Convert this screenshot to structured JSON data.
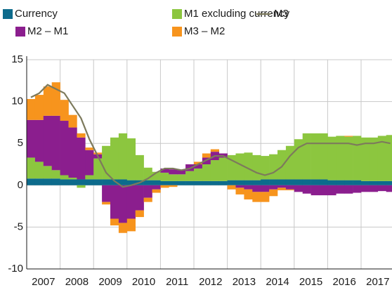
{
  "chart_data": {
    "type": "stacked_bar_line",
    "x": [
      2007.125,
      2007.375,
      2007.625,
      2007.875,
      2008.125,
      2008.375,
      2008.625,
      2008.875,
      2009.125,
      2009.375,
      2009.625,
      2009.875,
      2010.125,
      2010.375,
      2010.625,
      2010.875,
      2011.125,
      2011.375,
      2011.625,
      2011.875,
      2012.125,
      2012.375,
      2012.625,
      2012.875,
      2013.125,
      2013.375,
      2013.625,
      2013.875,
      2014.125,
      2014.375,
      2014.625,
      2014.875,
      2015.125,
      2015.375,
      2015.625,
      2015.875,
      2016.125,
      2016.375,
      2016.625,
      2016.875,
      2017.125,
      2017.375,
      2017.625,
      2017.875
    ],
    "xlim": [
      2007,
      2018
    ],
    "xticks": [
      {
        "value": 2007.5,
        "label": "2007"
      },
      {
        "value": 2008.5,
        "label": "2008"
      },
      {
        "value": 2009.5,
        "label": "2009"
      },
      {
        "value": 2010.5,
        "label": "2010"
      },
      {
        "value": 2011.5,
        "label": "2011"
      },
      {
        "value": 2012.5,
        "label": "2012"
      },
      {
        "value": 2013.5,
        "label": "2013"
      },
      {
        "value": 2014.5,
        "label": "2014"
      },
      {
        "value": 2015.5,
        "label": "2015"
      },
      {
        "value": 2016.5,
        "label": "2016"
      },
      {
        "value": 2017.5,
        "label": "2017"
      }
    ],
    "ylim": [
      -10,
      15
    ],
    "yticks": [
      -10,
      -5,
      0,
      5,
      10,
      15
    ],
    "grid": true,
    "series": [
      {
        "name": "Currency",
        "color": "#0d6b8c",
        "kind": "bar",
        "values": [
          0.8,
          0.8,
          0.8,
          0.8,
          0.7,
          0.7,
          0.7,
          0.7,
          0.7,
          0.7,
          0.7,
          0.7,
          0.6,
          0.6,
          0.6,
          0.6,
          0.5,
          0.5,
          0.5,
          0.5,
          0.5,
          0.5,
          0.5,
          0.5,
          0.6,
          0.6,
          0.6,
          0.6,
          0.7,
          0.7,
          0.7,
          0.7,
          0.7,
          0.7,
          0.7,
          0.7,
          0.6,
          0.6,
          0.6,
          0.6,
          0.5,
          0.5,
          0.5,
          0.5
        ]
      },
      {
        "name": "M1 excluding currency",
        "color": "#8cc63f",
        "kind": "bar",
        "values": [
          2.5,
          2,
          1.5,
          1,
          0.5,
          0.2,
          -0.3,
          0.5,
          2.5,
          4,
          5,
          5.5,
          5,
          3,
          1.5,
          1,
          1,
          0.8,
          0.8,
          1.2,
          1.5,
          2,
          2.5,
          2.8,
          3,
          3.2,
          3.3,
          3,
          2.8,
          3,
          3.5,
          4,
          4.8,
          5.5,
          5.5,
          5.5,
          5.2,
          5.3,
          5.2,
          5.3,
          5.2,
          5.2,
          5.4,
          5.5
        ]
      },
      {
        "name": "M2 – M1",
        "color": "#8b1e8e",
        "kind": "bar",
        "values": [
          4.5,
          5,
          6,
          6.5,
          6.5,
          6,
          5,
          3,
          0.5,
          -2,
          -4,
          -4.5,
          -4,
          -3,
          -1.5,
          -0.5,
          0.5,
          0.6,
          0.5,
          0.8,
          0.5,
          0.8,
          1,
          0.5,
          0,
          -0.3,
          -0.5,
          -0.8,
          -0.8,
          -0.5,
          -0.3,
          -0.5,
          -0.8,
          -1,
          -1.2,
          -1.2,
          -1.2,
          -1,
          -1,
          -0.9,
          -0.8,
          -0.8,
          -0.7,
          -0.8
        ]
      },
      {
        "name": "M3 – M2",
        "color": "#f7941d",
        "kind": "bar",
        "values": [
          2.5,
          3,
          3.5,
          4,
          2.5,
          1.5,
          0.5,
          0.3,
          0.2,
          -0.3,
          -0.8,
          -1.2,
          -1.5,
          -0.8,
          -0.5,
          -0.4,
          -0.3,
          -0.2,
          0,
          0,
          0.3,
          0.5,
          0.3,
          0,
          -0.5,
          -0.8,
          -1.2,
          -1.2,
          -1.2,
          -0.8,
          -0.3,
          -0.1,
          0,
          0,
          0,
          0,
          0,
          0,
          0.1,
          0,
          0,
          0,
          0,
          0
        ]
      },
      {
        "name": "M3",
        "color": "#7d7a5c",
        "kind": "line",
        "values": [
          10.5,
          11,
          12,
          11.5,
          11,
          9.5,
          8,
          5.5,
          3.5,
          1.5,
          0.5,
          -0.2,
          0,
          0.3,
          0.8,
          1.5,
          2,
          2,
          1.8,
          2,
          2.5,
          3,
          3.5,
          3.5,
          3,
          2.5,
          2,
          1.5,
          1.2,
          1.5,
          2.2,
          3.5,
          4.5,
          5,
          5,
          5,
          5,
          5,
          5,
          4.8,
          5,
          5,
          5.2,
          5
        ]
      }
    ]
  }
}
